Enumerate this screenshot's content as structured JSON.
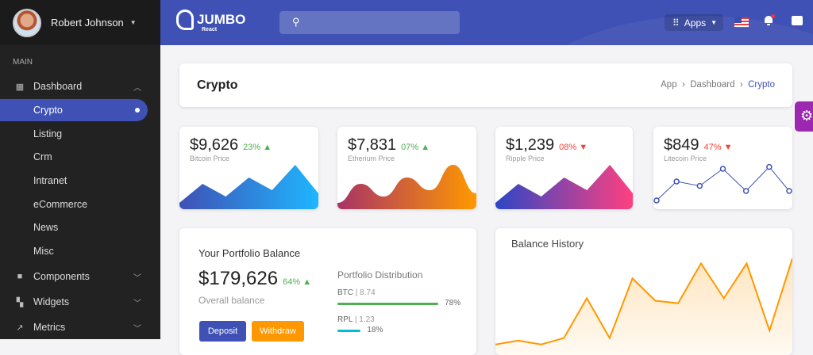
{
  "sidebar": {
    "user": "Robert Johnson",
    "section": "MAIN",
    "items": [
      {
        "label": "Dashboard",
        "icon": "dashboard-icon"
      },
      {
        "label": "Components",
        "icon": "folder-icon"
      },
      {
        "label": "Widgets",
        "icon": "widgets-icon"
      },
      {
        "label": "Metrics",
        "icon": "trending-icon"
      }
    ],
    "sub": [
      "Crypto",
      "Listing",
      "Crm",
      "Intranet",
      "eCommerce",
      "News",
      "Misc"
    ]
  },
  "header": {
    "logo": "JUMBO",
    "logo_sub": "React",
    "apps": "Apps"
  },
  "page": {
    "title": "Crypto",
    "breadcrumb": [
      "App",
      "Dashboard",
      "Crypto"
    ]
  },
  "cards": [
    {
      "price": "$9,626",
      "pct": "23%",
      "dir": "up",
      "label": "Bitcoin Price",
      "type": "area-sharp",
      "colors": [
        "#3f51b5",
        "#1fb6ff"
      ],
      "values": [
        1,
        4,
        2,
        5,
        3,
        7,
        2.5
      ]
    },
    {
      "price": "$7,831",
      "pct": "07%",
      "dir": "up",
      "label": "Etherium Price",
      "type": "area-smooth",
      "colors": [
        "#a83266",
        "#ff9800"
      ],
      "values": [
        1,
        4,
        2,
        5,
        3,
        7,
        2.5
      ]
    },
    {
      "price": "$1,239",
      "pct": "08%",
      "dir": "down",
      "label": "Ripple Price",
      "type": "area-sharp",
      "colors": [
        "#2d46c6",
        "#ff4081"
      ],
      "values": [
        1,
        4,
        2,
        5,
        3,
        7,
        2.5
      ]
    },
    {
      "price": "$849",
      "pct": "47%",
      "dir": "down",
      "label": "Litecoin Price",
      "type": "line",
      "colors": [
        "#3f51b5"
      ],
      "values": [
        1,
        4,
        3.3,
        6,
        2.5,
        6.3,
        2.5
      ]
    }
  ],
  "portfolio": {
    "title": "Your Portfolio Balance",
    "value": "$179,626",
    "pct": "64%",
    "sub": "Overall balance",
    "deposit": "Deposit",
    "withdraw": "Withdraw",
    "dist_title": "Portfolio Distribution",
    "dist": [
      {
        "coin": "BTC",
        "amount": "8.74",
        "pct": "78%",
        "value": 78,
        "color": "#4caf50"
      },
      {
        "coin": "RPL",
        "amount": "1.23",
        "pct": "18%",
        "value": 18,
        "color": "#00bcd4"
      }
    ]
  },
  "chart_data": {
    "type": "area",
    "title": "Balance History",
    "color": "#ff9800",
    "values": [
      2,
      10,
      2,
      15,
      95,
      15,
      135,
      90,
      85,
      165,
      95,
      165,
      30,
      175
    ]
  }
}
